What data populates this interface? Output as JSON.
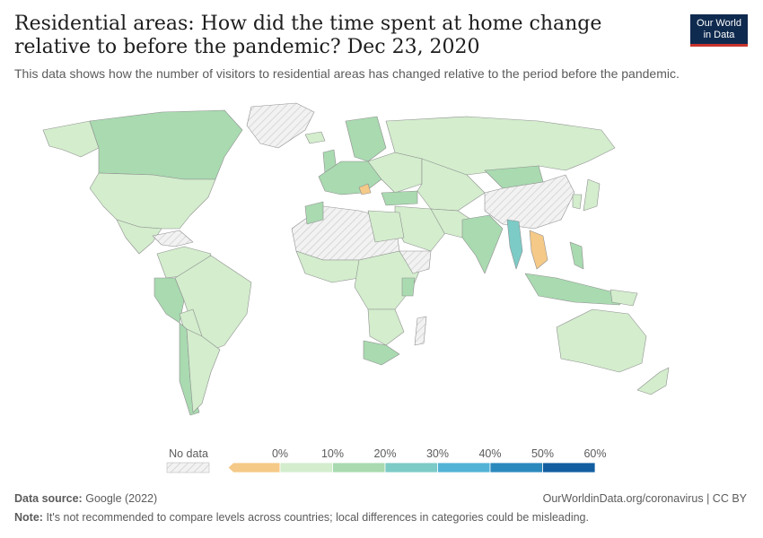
{
  "header": {
    "title": "Residential areas: How did the time spent at home change relative to before the pandemic? Dec 23, 2020",
    "subtitle": "This data shows how the number of visitors to residential areas has changed relative to the period before the pandemic."
  },
  "logo": {
    "line1": "Our World",
    "line2": "in Data",
    "bg_color": "#0f2a4f",
    "accent_color": "#c8332d"
  },
  "legend": {
    "no_data_label": "No data",
    "bins": [
      {
        "label": "0%",
        "color": "#f5c987"
      },
      {
        "label": "10%",
        "color": "#d3edcd"
      },
      {
        "label": "20%",
        "color": "#a9dab0"
      },
      {
        "label": "30%",
        "color": "#7ccbc6"
      },
      {
        "label": "40%",
        "color": "#52b3d6"
      },
      {
        "label": "50%",
        "color": "#2c89bd"
      },
      {
        "label": "60%",
        "color": "#125ea1"
      }
    ],
    "no_data_color": "#f2f2f2"
  },
  "footer": {
    "source_label": "Data source:",
    "source_value": "Google (2022)",
    "url": "OurWorldinData.org/coronavirus | CC BY",
    "note_label": "Note:",
    "note_value": "It's not recommended to compare levels across countries; local differences in categories could be misleading."
  }
}
